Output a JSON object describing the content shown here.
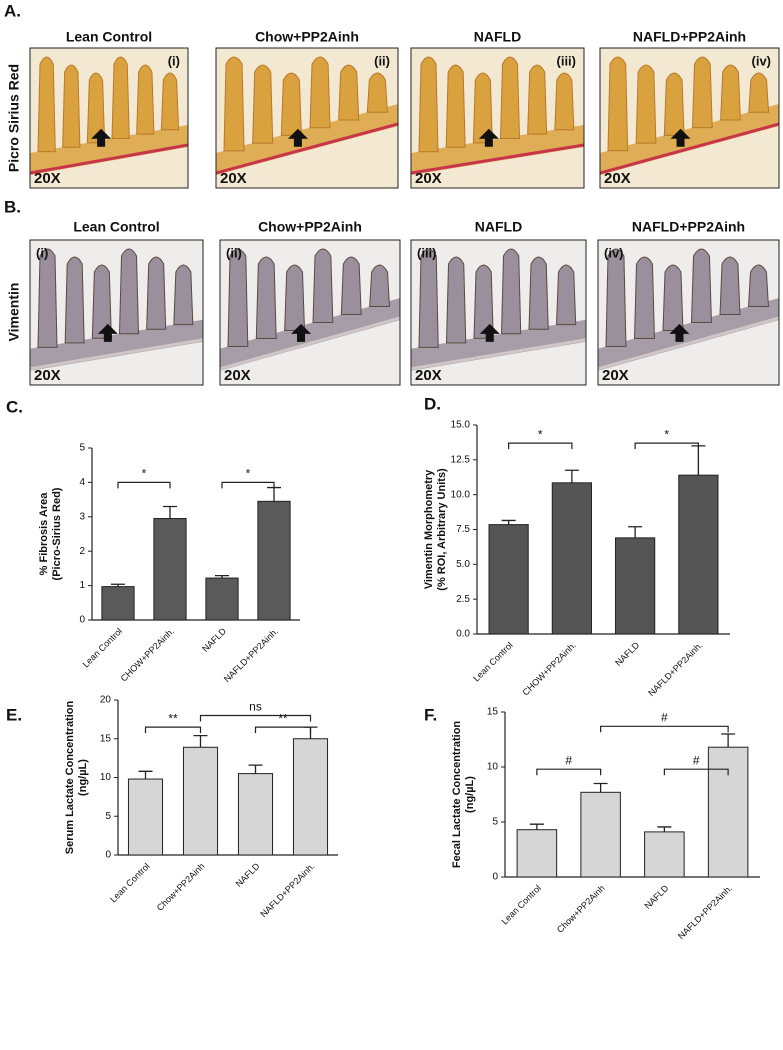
{
  "panels": [
    {
      "letter": "A.",
      "stain": "Picro Sirius Red",
      "images": [
        {
          "title": "Lean Control",
          "numeral": "(i)",
          "magnification": "20X"
        },
        {
          "title": "Chow+PP2Ainh",
          "numeral": "(ii)",
          "magnification": "20X"
        },
        {
          "title": "NAFLD",
          "numeral": "(iii)",
          "magnification": "20X"
        },
        {
          "title": "NAFLD+PP2Ainh",
          "numeral": "(iv)",
          "magnification": "20X"
        }
      ]
    },
    {
      "letter": "B.",
      "stain": "Vimentin",
      "images": [
        {
          "title": "Lean Control",
          "numeral": "(i)",
          "magnification": "20X"
        },
        {
          "title": "Chow+PP2Ainh",
          "numeral": "(ii)",
          "magnification": "20X"
        },
        {
          "title": "NAFLD",
          "numeral": "(iii)",
          "magnification": "20X"
        },
        {
          "title": "NAFLD+PP2Ainh",
          "numeral": "(iv)",
          "magnification": "20X"
        }
      ]
    }
  ],
  "chart_data": [
    {
      "type": "bar",
      "panel_label": "C.",
      "ylabel": [
        "% Fibrosis Area",
        "(Picro-Sirius Red)"
      ],
      "categories": [
        "Lean Control",
        "CHOW+PP2Ainh.",
        "NAFLD",
        "NAFLD+PP2Ainh."
      ],
      "values": [
        0.97,
        2.95,
        1.22,
        3.45
      ],
      "errors": [
        0.07,
        0.35,
        0.07,
        0.4
      ],
      "color": "#5a5a5a",
      "ylim": [
        0,
        5
      ],
      "yticks": [
        0,
        1,
        2,
        3,
        4,
        5
      ],
      "comparisons": [
        {
          "x": [
            "Lean Control",
            "CHOW+PP2Ainh."
          ],
          "y": 4.0,
          "label": "*"
        },
        {
          "x": [
            "NAFLD",
            "NAFLD+PP2Ainh."
          ],
          "y": 4.0,
          "label": "*"
        }
      ]
    },
    {
      "type": "bar",
      "panel_label": "D.",
      "ylabel": [
        "Vimentin Morphometry",
        "(% ROI, Arbitrary Units)"
      ],
      "categories": [
        "Lean Control",
        "CHOW+PP2Ainh.",
        "NAFLD",
        "NAFLD+PP2Ainh."
      ],
      "values": [
        7.85,
        10.85,
        6.9,
        11.4
      ],
      "errors": [
        0.3,
        0.9,
        0.8,
        2.1
      ],
      "color": "#555555",
      "ylim": [
        0,
        15
      ],
      "yticks": [
        {
          "value": 0,
          "label": "0.0"
        },
        {
          "value": 2.5,
          "label": "2.5"
        },
        {
          "value": 5,
          "label": "5.0"
        },
        {
          "value": 7.5,
          "label": "7.5"
        },
        {
          "value": 10,
          "label": "10.0"
        },
        {
          "value": 12.5,
          "label": "12.5"
        },
        {
          "value": 15,
          "label": "15.0"
        }
      ],
      "comparisons": [
        {
          "x": [
            "Lean Control",
            "CHOW+PP2Ainh."
          ],
          "y": 13.7,
          "label": "*"
        },
        {
          "x": [
            "NAFLD",
            "NAFLD+PP2Ainh."
          ],
          "y": 13.7,
          "label": "*"
        }
      ]
    },
    {
      "type": "bar",
      "panel_label": "E.",
      "ylabel": [
        "Serum Lactate Concentration",
        "(ng/µL)"
      ],
      "categories": [
        "Lean Control",
        "Chow+PP2Ainh",
        "NAFLD",
        "NAFLD+PP2Ainh."
      ],
      "values": [
        9.8,
        13.9,
        10.5,
        15.0
      ],
      "errors": [
        1.0,
        1.5,
        1.1,
        1.5
      ],
      "color": "#d6d6d6",
      "ylim": [
        0,
        20
      ],
      "yticks": [
        0,
        5,
        10,
        15,
        20
      ],
      "comparisons": [
        {
          "x": [
            "Lean Control",
            "Chow+PP2Ainh"
          ],
          "y": 16.5,
          "label": "**"
        },
        {
          "x": [
            "NAFLD",
            "NAFLD+PP2Ainh."
          ],
          "y": 16.5,
          "label": "**"
        },
        {
          "x": [
            "Chow+PP2Ainh",
            "NAFLD+PP2Ainh."
          ],
          "y": 18.0,
          "label": "ns"
        }
      ]
    },
    {
      "type": "bar",
      "panel_label": "F.",
      "ylabel": [
        "Fecal Lactate Concentration",
        "(ng/µL)"
      ],
      "categories": [
        "Lean Control",
        "Chow+PP2Ainh",
        "NAFLD",
        "NAFLD+PP2Ainh."
      ],
      "values": [
        4.3,
        7.7,
        4.1,
        11.8
      ],
      "errors": [
        0.5,
        0.8,
        0.45,
        1.2
      ],
      "color": "#d6d6d6",
      "ylim": [
        0,
        15
      ],
      "yticks": [
        0,
        5,
        10,
        15
      ],
      "comparisons": [
        {
          "x": [
            "Lean Control",
            "Chow+PP2Ainh"
          ],
          "y": 9.8,
          "label": "#"
        },
        {
          "x": [
            "NAFLD",
            "NAFLD+PP2Ainh."
          ],
          "y": 9.8,
          "label": "#"
        },
        {
          "x": [
            "Chow+PP2Ainh",
            "NAFLD+PP2Ainh."
          ],
          "y": 13.7,
          "label": "#"
        }
      ]
    }
  ]
}
